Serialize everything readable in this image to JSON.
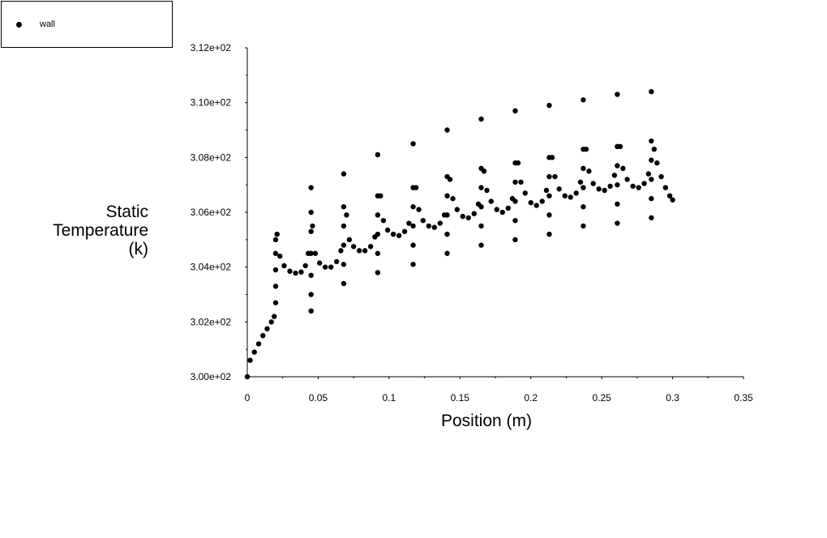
{
  "chart_data": {
    "type": "scatter",
    "title": "",
    "xlabel": "Position (m)",
    "ylabel_lines": [
      "Static",
      "Temperature",
      "(k)"
    ],
    "xlim": [
      0,
      0.35
    ],
    "ylim": [
      300.0,
      312.0
    ],
    "x_ticks": [
      0,
      0.05,
      0.1,
      0.15,
      0.2,
      0.25,
      0.3,
      0.35
    ],
    "x_tick_labels": [
      "0",
      "0.05",
      "0.1",
      "0.15",
      "0.2",
      "0.25",
      "0.3",
      "0.35"
    ],
    "y_ticks": [
      300,
      302,
      304,
      306,
      308,
      310,
      312
    ],
    "y_tick_labels": [
      "3.00e+02",
      "3.02e+02",
      "3.04e+02",
      "3.06e+02",
      "3.08e+02",
      "3.10e+02",
      "3.12e+02"
    ],
    "grid": false,
    "legend_position": "top-left",
    "series": [
      {
        "name": "wall",
        "color": "#000000",
        "marker": "filled-circle",
        "points": [
          [
            0.0,
            300.0
          ],
          [
            0.002,
            300.6
          ],
          [
            0.005,
            300.9
          ],
          [
            0.008,
            301.2
          ],
          [
            0.011,
            301.5
          ],
          [
            0.014,
            301.75
          ],
          [
            0.017,
            302.0
          ],
          [
            0.019,
            302.2
          ],
          [
            0.02,
            302.7
          ],
          [
            0.02,
            303.3
          ],
          [
            0.02,
            303.9
          ],
          [
            0.02,
            304.5
          ],
          [
            0.02,
            305.0
          ],
          [
            0.021,
            305.2
          ],
          [
            0.023,
            304.4
          ],
          [
            0.026,
            304.05
          ],
          [
            0.03,
            303.85
          ],
          [
            0.034,
            303.78
          ],
          [
            0.038,
            303.82
          ],
          [
            0.041,
            304.05
          ],
          [
            0.043,
            304.5
          ],
          [
            0.045,
            302.4
          ],
          [
            0.045,
            303.0
          ],
          [
            0.045,
            303.7
          ],
          [
            0.045,
            304.5
          ],
          [
            0.045,
            305.3
          ],
          [
            0.045,
            306.0
          ],
          [
            0.045,
            306.9
          ],
          [
            0.046,
            305.5
          ],
          [
            0.048,
            304.5
          ],
          [
            0.051,
            304.15
          ],
          [
            0.055,
            304.0
          ],
          [
            0.059,
            304.0
          ],
          [
            0.063,
            304.2
          ],
          [
            0.066,
            304.6
          ],
          [
            0.068,
            303.4
          ],
          [
            0.068,
            304.1
          ],
          [
            0.068,
            304.8
          ],
          [
            0.068,
            305.5
          ],
          [
            0.068,
            306.2
          ],
          [
            0.068,
            307.4
          ],
          [
            0.07,
            305.9
          ],
          [
            0.072,
            305.0
          ],
          [
            0.075,
            304.75
          ],
          [
            0.079,
            304.6
          ],
          [
            0.083,
            304.6
          ],
          [
            0.087,
            304.75
          ],
          [
            0.09,
            305.1
          ],
          [
            0.092,
            303.8
          ],
          [
            0.092,
            304.5
          ],
          [
            0.092,
            305.2
          ],
          [
            0.092,
            305.9
          ],
          [
            0.092,
            306.6
          ],
          [
            0.092,
            308.1
          ],
          [
            0.094,
            306.6
          ],
          [
            0.096,
            305.7
          ],
          [
            0.099,
            305.35
          ],
          [
            0.103,
            305.2
          ],
          [
            0.107,
            305.15
          ],
          [
            0.111,
            305.3
          ],
          [
            0.114,
            305.6
          ],
          [
            0.117,
            304.1
          ],
          [
            0.117,
            304.8
          ],
          [
            0.117,
            305.5
          ],
          [
            0.117,
            306.2
          ],
          [
            0.117,
            306.9
          ],
          [
            0.117,
            308.5
          ],
          [
            0.119,
            306.9
          ],
          [
            0.121,
            306.1
          ],
          [
            0.124,
            305.7
          ],
          [
            0.128,
            305.5
          ],
          [
            0.132,
            305.45
          ],
          [
            0.136,
            305.6
          ],
          [
            0.139,
            305.9
          ],
          [
            0.141,
            304.5
          ],
          [
            0.141,
            305.2
          ],
          [
            0.141,
            305.9
          ],
          [
            0.141,
            306.6
          ],
          [
            0.141,
            307.3
          ],
          [
            0.141,
            309.0
          ],
          [
            0.143,
            307.2
          ],
          [
            0.145,
            306.5
          ],
          [
            0.148,
            306.1
          ],
          [
            0.152,
            305.85
          ],
          [
            0.156,
            305.8
          ],
          [
            0.16,
            305.95
          ],
          [
            0.163,
            306.3
          ],
          [
            0.165,
            304.8
          ],
          [
            0.165,
            305.5
          ],
          [
            0.165,
            306.2
          ],
          [
            0.165,
            306.9
          ],
          [
            0.165,
            307.6
          ],
          [
            0.165,
            309.4
          ],
          [
            0.167,
            307.5
          ],
          [
            0.169,
            306.8
          ],
          [
            0.172,
            306.4
          ],
          [
            0.176,
            306.1
          ],
          [
            0.18,
            306.0
          ],
          [
            0.184,
            306.15
          ],
          [
            0.187,
            306.5
          ],
          [
            0.189,
            305.0
          ],
          [
            0.189,
            305.7
          ],
          [
            0.189,
            306.4
          ],
          [
            0.189,
            307.1
          ],
          [
            0.189,
            307.8
          ],
          [
            0.189,
            309.7
          ],
          [
            0.191,
            307.8
          ],
          [
            0.193,
            307.1
          ],
          [
            0.196,
            306.7
          ],
          [
            0.2,
            306.35
          ],
          [
            0.204,
            306.25
          ],
          [
            0.208,
            306.4
          ],
          [
            0.211,
            306.8
          ],
          [
            0.213,
            305.2
          ],
          [
            0.213,
            305.9
          ],
          [
            0.213,
            306.6
          ],
          [
            0.213,
            307.3
          ],
          [
            0.213,
            308.0
          ],
          [
            0.213,
            309.9
          ],
          [
            0.215,
            308.0
          ],
          [
            0.217,
            307.3
          ],
          [
            0.22,
            306.85
          ],
          [
            0.224,
            306.6
          ],
          [
            0.228,
            306.55
          ],
          [
            0.232,
            306.7
          ],
          [
            0.235,
            307.1
          ],
          [
            0.237,
            305.5
          ],
          [
            0.237,
            306.2
          ],
          [
            0.237,
            306.9
          ],
          [
            0.237,
            307.6
          ],
          [
            0.237,
            308.3
          ],
          [
            0.237,
            310.1
          ],
          [
            0.239,
            308.3
          ],
          [
            0.241,
            307.5
          ],
          [
            0.244,
            307.05
          ],
          [
            0.248,
            306.85
          ],
          [
            0.252,
            306.8
          ],
          [
            0.256,
            306.95
          ],
          [
            0.259,
            307.35
          ],
          [
            0.261,
            305.6
          ],
          [
            0.261,
            306.3
          ],
          [
            0.261,
            307.0
          ],
          [
            0.261,
            307.7
          ],
          [
            0.261,
            308.4
          ],
          [
            0.261,
            310.3
          ],
          [
            0.263,
            308.4
          ],
          [
            0.265,
            307.6
          ],
          [
            0.268,
            307.2
          ],
          [
            0.272,
            306.95
          ],
          [
            0.276,
            306.9
          ],
          [
            0.28,
            307.05
          ],
          [
            0.283,
            307.4
          ],
          [
            0.285,
            305.8
          ],
          [
            0.285,
            306.5
          ],
          [
            0.285,
            307.2
          ],
          [
            0.285,
            307.9
          ],
          [
            0.285,
            308.6
          ],
          [
            0.285,
            310.4
          ],
          [
            0.287,
            308.3
          ],
          [
            0.289,
            307.8
          ],
          [
            0.292,
            307.3
          ],
          [
            0.295,
            306.9
          ],
          [
            0.298,
            306.6
          ],
          [
            0.3,
            306.45
          ]
        ]
      }
    ]
  }
}
